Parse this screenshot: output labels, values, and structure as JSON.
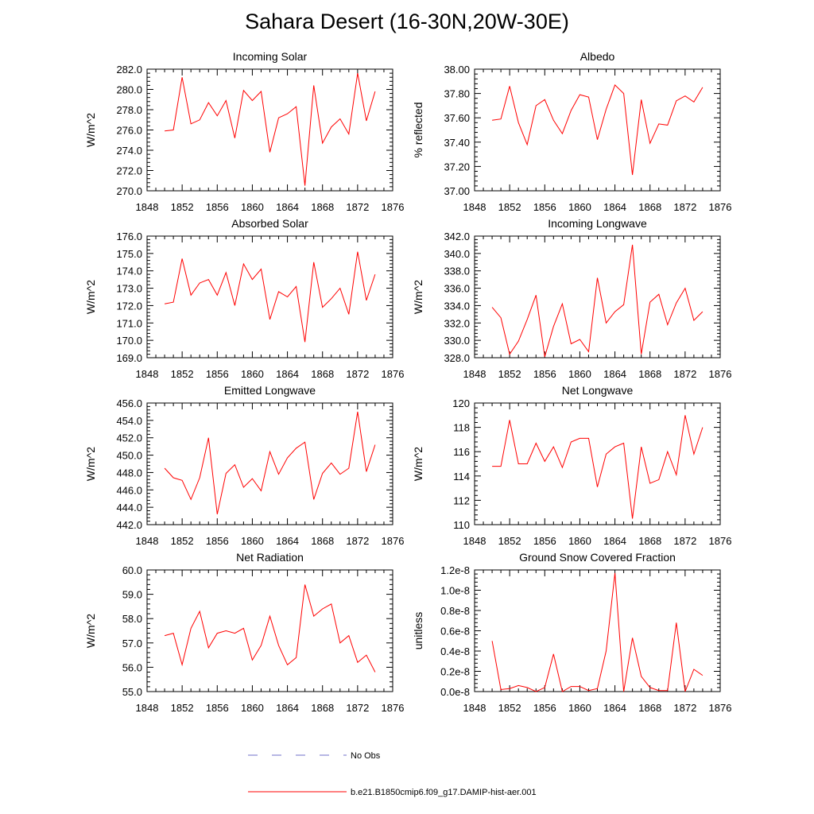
{
  "figure_title": "Sahara Desert (16-30N,20W-30E)",
  "legend": [
    {
      "label": "No Obs",
      "style": "dashed",
      "color": "#6f6fc8"
    },
    {
      "label": "b.e21.B1850cmip6.f09_g17.DAMIP-hist-aer.001",
      "style": "solid",
      "color": "#ff0000"
    }
  ],
  "chart_data": [
    {
      "type": "line",
      "title": "Incoming Solar",
      "ylabel": "W/m^2",
      "xlim": [
        1848,
        1876
      ],
      "xticks": [
        "1848",
        "1852",
        "1856",
        "1860",
        "1864",
        "1868",
        "1872",
        "1876"
      ],
      "ylim": [
        270,
        282
      ],
      "yticks": [
        "270.0",
        "272.0",
        "274.0",
        "276.0",
        "278.0",
        "280.0",
        "282.0"
      ],
      "series": [
        {
          "color": "#ff0000",
          "x": [
            1850,
            1851,
            1852,
            1853,
            1854,
            1855,
            1856,
            1857,
            1858,
            1859,
            1860,
            1861,
            1862,
            1863,
            1864,
            1865,
            1866,
            1867,
            1868,
            1869,
            1870,
            1871,
            1872,
            1873,
            1874
          ],
          "values": [
            275.9,
            276.0,
            281.2,
            276.6,
            277.0,
            278.7,
            277.4,
            278.9,
            275.2,
            279.9,
            278.9,
            279.8,
            273.8,
            277.2,
            277.6,
            278.3,
            270.5,
            280.4,
            274.7,
            276.3,
            277.1,
            275.6,
            281.6,
            276.9,
            279.8
          ]
        }
      ]
    },
    {
      "type": "line",
      "title": "Albedo",
      "ylabel": "% reflected",
      "xlim": [
        1848,
        1876
      ],
      "xticks": [
        "1848",
        "1852",
        "1856",
        "1860",
        "1864",
        "1868",
        "1872",
        "1876"
      ],
      "ylim": [
        37.0,
        38.0
      ],
      "yticks": [
        "37.00",
        "37.20",
        "37.40",
        "37.60",
        "37.80",
        "38.00"
      ],
      "series": [
        {
          "color": "#ff0000",
          "x": [
            1850,
            1851,
            1852,
            1853,
            1854,
            1855,
            1856,
            1857,
            1858,
            1859,
            1860,
            1861,
            1862,
            1863,
            1864,
            1865,
            1866,
            1867,
            1868,
            1869,
            1870,
            1871,
            1872,
            1873,
            1874
          ],
          "values": [
            37.58,
            37.59,
            37.86,
            37.56,
            37.38,
            37.7,
            37.75,
            37.58,
            37.47,
            37.66,
            37.79,
            37.77,
            37.42,
            37.67,
            37.87,
            37.8,
            37.13,
            37.75,
            37.39,
            37.55,
            37.54,
            37.74,
            37.78,
            37.73,
            37.85
          ]
        }
      ]
    },
    {
      "type": "line",
      "title": "Absorbed Solar",
      "ylabel": "W/m^2",
      "xlim": [
        1848,
        1876
      ],
      "xticks": [
        "1848",
        "1852",
        "1856",
        "1860",
        "1864",
        "1868",
        "1872",
        "1876"
      ],
      "ylim": [
        169,
        176
      ],
      "yticks": [
        "169.0",
        "170.0",
        "171.0",
        "172.0",
        "173.0",
        "174.0",
        "175.0",
        "176.0"
      ],
      "series": [
        {
          "color": "#ff0000",
          "x": [
            1850,
            1851,
            1852,
            1853,
            1854,
            1855,
            1856,
            1857,
            1858,
            1859,
            1860,
            1861,
            1862,
            1863,
            1864,
            1865,
            1866,
            1867,
            1868,
            1869,
            1870,
            1871,
            1872,
            1873,
            1874
          ],
          "values": [
            172.1,
            172.2,
            174.7,
            172.6,
            173.3,
            173.5,
            172.6,
            173.9,
            172.0,
            174.4,
            173.5,
            174.1,
            171.2,
            172.8,
            172.5,
            173.1,
            169.9,
            174.5,
            171.9,
            172.4,
            173.0,
            171.5,
            175.1,
            172.3,
            173.8
          ]
        }
      ]
    },
    {
      "type": "line",
      "title": "Incoming Longwave",
      "ylabel": "W/m^2",
      "xlim": [
        1848,
        1876
      ],
      "xticks": [
        "1848",
        "1852",
        "1856",
        "1860",
        "1864",
        "1868",
        "1872",
        "1876"
      ],
      "ylim": [
        328,
        342
      ],
      "yticks": [
        "328.0",
        "330.0",
        "332.0",
        "334.0",
        "336.0",
        "338.0",
        "340.0",
        "342.0"
      ],
      "series": [
        {
          "color": "#ff0000",
          "x": [
            1850,
            1851,
            1852,
            1853,
            1854,
            1855,
            1856,
            1857,
            1858,
            1859,
            1860,
            1861,
            1862,
            1863,
            1864,
            1865,
            1866,
            1867,
            1868,
            1869,
            1870,
            1871,
            1872,
            1873,
            1874
          ],
          "values": [
            333.8,
            332.6,
            328.4,
            329.9,
            332.4,
            335.2,
            328.1,
            331.6,
            334.2,
            329.6,
            330.1,
            328.7,
            337.2,
            332.0,
            333.3,
            334.1,
            341.0,
            328.4,
            334.4,
            335.3,
            331.8,
            334.3,
            336.0,
            332.3,
            333.3
          ]
        }
      ]
    },
    {
      "type": "line",
      "title": "Emitted Longwave",
      "ylabel": "W/m^2",
      "xlim": [
        1848,
        1876
      ],
      "xticks": [
        "1848",
        "1852",
        "1856",
        "1860",
        "1864",
        "1868",
        "1872",
        "1876"
      ],
      "ylim": [
        442,
        456
      ],
      "yticks": [
        "442.0",
        "444.0",
        "446.0",
        "448.0",
        "450.0",
        "452.0",
        "454.0",
        "456.0"
      ],
      "series": [
        {
          "color": "#ff0000",
          "x": [
            1850,
            1851,
            1852,
            1853,
            1854,
            1855,
            1856,
            1857,
            1858,
            1859,
            1860,
            1861,
            1862,
            1863,
            1864,
            1865,
            1866,
            1867,
            1868,
            1869,
            1870,
            1871,
            1872,
            1873,
            1874
          ],
          "values": [
            448.5,
            447.4,
            447.1,
            444.9,
            447.4,
            452.0,
            443.2,
            447.9,
            448.9,
            446.3,
            447.3,
            445.9,
            450.4,
            447.8,
            449.7,
            450.8,
            451.5,
            444.9,
            447.9,
            449.1,
            447.8,
            448.5,
            455.0,
            448.1,
            451.2
          ]
        }
      ]
    },
    {
      "type": "line",
      "title": "Net Longwave",
      "ylabel": "W/m^2",
      "xlim": [
        1848,
        1876
      ],
      "xticks": [
        "1848",
        "1852",
        "1856",
        "1860",
        "1864",
        "1868",
        "1872",
        "1876"
      ],
      "ylim": [
        110,
        120
      ],
      "yticks": [
        "110",
        "112",
        "114",
        "116",
        "118",
        "120"
      ],
      "series": [
        {
          "color": "#ff0000",
          "x": [
            1850,
            1851,
            1852,
            1853,
            1854,
            1855,
            1856,
            1857,
            1858,
            1859,
            1860,
            1861,
            1862,
            1863,
            1864,
            1865,
            1866,
            1867,
            1868,
            1869,
            1870,
            1871,
            1872,
            1873,
            1874
          ],
          "values": [
            114.8,
            114.8,
            118.6,
            115.0,
            115.0,
            116.7,
            115.2,
            116.4,
            114.7,
            116.8,
            117.1,
            117.1,
            113.1,
            115.8,
            116.4,
            116.7,
            110.5,
            116.4,
            113.4,
            113.7,
            116.0,
            114.1,
            119.0,
            115.8,
            118.0
          ]
        }
      ]
    },
    {
      "type": "line",
      "title": "Net Radiation",
      "ylabel": "W/m^2",
      "xlim": [
        1848,
        1876
      ],
      "xticks": [
        "1848",
        "1852",
        "1856",
        "1860",
        "1864",
        "1868",
        "1872",
        "1876"
      ],
      "ylim": [
        55,
        60
      ],
      "yticks": [
        "55.0",
        "56.0",
        "57.0",
        "58.0",
        "59.0",
        "60.0"
      ],
      "series": [
        {
          "color": "#ff0000",
          "x": [
            1850,
            1851,
            1852,
            1853,
            1854,
            1855,
            1856,
            1857,
            1858,
            1859,
            1860,
            1861,
            1862,
            1863,
            1864,
            1865,
            1866,
            1867,
            1868,
            1869,
            1870,
            1871,
            1872,
            1873,
            1874
          ],
          "values": [
            57.3,
            57.4,
            56.1,
            57.6,
            58.3,
            56.8,
            57.4,
            57.5,
            57.4,
            57.6,
            56.3,
            56.9,
            58.1,
            56.9,
            56.1,
            56.4,
            59.4,
            58.1,
            58.4,
            58.6,
            57.0,
            57.3,
            56.2,
            56.5,
            55.8
          ]
        }
      ]
    },
    {
      "type": "line",
      "title": "Ground Snow Covered Fraction",
      "ylabel": "unitless",
      "xlim": [
        1848,
        1876
      ],
      "xticks": [
        "1848",
        "1852",
        "1856",
        "1860",
        "1864",
        "1868",
        "1872",
        "1876"
      ],
      "ylim": [
        0,
        1.2e-08
      ],
      "yticks": [
        "0.0e-8",
        "0.2e-8",
        "0.4e-8",
        "0.6e-8",
        "0.8e-8",
        "1.0e-8",
        "1.2e-8"
      ],
      "series": [
        {
          "color": "#ff0000",
          "x": [
            1850,
            1851,
            1852,
            1853,
            1854,
            1855,
            1856,
            1857,
            1858,
            1859,
            1860,
            1861,
            1862,
            1863,
            1864,
            1865,
            1866,
            1867,
            1868,
            1869,
            1870,
            1871,
            1872,
            1873,
            1874
          ],
          "values": [
            5e-09,
            2e-10,
            3e-10,
            6e-10,
            4e-10,
            0.0,
            4e-10,
            3.7e-09,
            0.0,
            5e-10,
            5e-10,
            1e-10,
            3e-10,
            4e-09,
            1.17e-08,
            0.0,
            5.3e-09,
            1.5e-09,
            4e-10,
            1e-10,
            1e-10,
            6.8e-09,
            0.0,
            2.2e-09,
            1.6e-09
          ]
        }
      ]
    }
  ]
}
